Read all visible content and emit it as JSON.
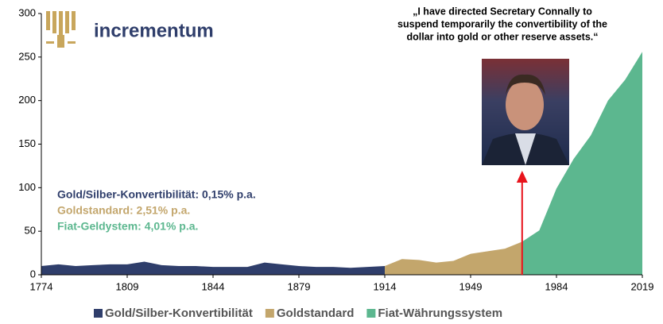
{
  "chart_data": {
    "type": "area",
    "logo": "incrementum",
    "quote": [
      "„I have directed Secretary Connally to",
      "suspend temporarily the convertibility of the",
      "dollar into gold or other reserve assets.“"
    ],
    "annotations": [
      "Gold/Silber-Konvertibilität: 0,15% p.a.",
      "Goldstandard: 2,51% p.a.",
      "Fiat-Geldystem: 4,01% p.a."
    ],
    "x": [
      1774,
      1781,
      1788,
      1795,
      1802,
      1809,
      1816,
      1823,
      1830,
      1837,
      1844,
      1851,
      1858,
      1865,
      1872,
      1879,
      1886,
      1893,
      1900,
      1907,
      1914,
      1921,
      1928,
      1935,
      1942,
      1949,
      1956,
      1963,
      1970,
      1977,
      1984,
      1991,
      1998,
      2005,
      2012,
      2019
    ],
    "series": [
      {
        "name": "Gold/Silber-Konvertibilität",
        "color": "#2f3e6b",
        "values": [
          10,
          12,
          10,
          11,
          12,
          12,
          15,
          11,
          10,
          10,
          9,
          9,
          9,
          14,
          12,
          10,
          9,
          9,
          8,
          9,
          10,
          null,
          null,
          null,
          null,
          null,
          null,
          null,
          null,
          null,
          null,
          null,
          null,
          null,
          null,
          null
        ]
      },
      {
        "name": "Goldstandard",
        "color": "#c3a66c",
        "values": [
          null,
          null,
          null,
          null,
          null,
          null,
          null,
          null,
          null,
          null,
          null,
          null,
          null,
          null,
          null,
          null,
          null,
          null,
          null,
          null,
          10,
          18,
          17,
          14,
          16,
          24,
          27,
          30,
          38,
          null,
          null,
          null,
          null,
          null,
          null,
          null
        ]
      },
      {
        "name": "Fiat-Währungssystem",
        "color": "#5cb78f",
        "values": [
          null,
          null,
          null,
          null,
          null,
          null,
          null,
          null,
          null,
          null,
          null,
          null,
          null,
          null,
          null,
          null,
          null,
          null,
          null,
          null,
          null,
          null,
          null,
          null,
          null,
          null,
          null,
          null,
          38,
          51,
          99,
          133,
          160,
          200,
          224,
          256
        ]
      }
    ],
    "xlim": [
      1774,
      2019
    ],
    "xticks": [
      1774,
      1809,
      1844,
      1879,
      1914,
      1949,
      1984,
      2019
    ],
    "ylim": [
      0,
      300
    ],
    "yticks": [
      0,
      50,
      100,
      150,
      200,
      250,
      300
    ]
  }
}
